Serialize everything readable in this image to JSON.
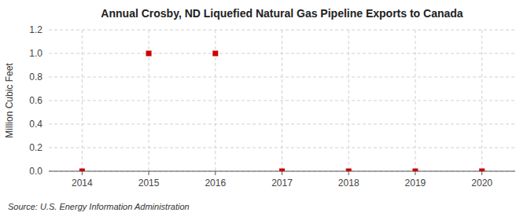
{
  "chart_data": {
    "type": "scatter",
    "title": "Annual Crosby, ND Liquefied Natural Gas Pipeline Exports to Canada",
    "y_label": "Million Cubic Feet",
    "annotations": [
      "Source: U.S. Energy Information Administration"
    ],
    "x": [
      2014,
      2015,
      2016,
      2017,
      2018,
      2019,
      2020
    ],
    "values": [
      0.0,
      1.0,
      1.0,
      0.0,
      0.0,
      0.0,
      0.0
    ],
    "color": "#cc0000",
    "marker": "square",
    "xlim": [
      2013.5,
      2020.5
    ],
    "xticks": [
      2014,
      2015,
      2016,
      2017,
      2018,
      2019,
      2020
    ],
    "ylim": [
      0.0,
      1.2
    ],
    "yticks": [
      {
        "value": 0.0,
        "label": "0.0"
      },
      0.2,
      0.4,
      0.6,
      0.8,
      {
        "value": 1.0,
        "label": "1.0"
      },
      1.2
    ],
    "grid": true
  }
}
